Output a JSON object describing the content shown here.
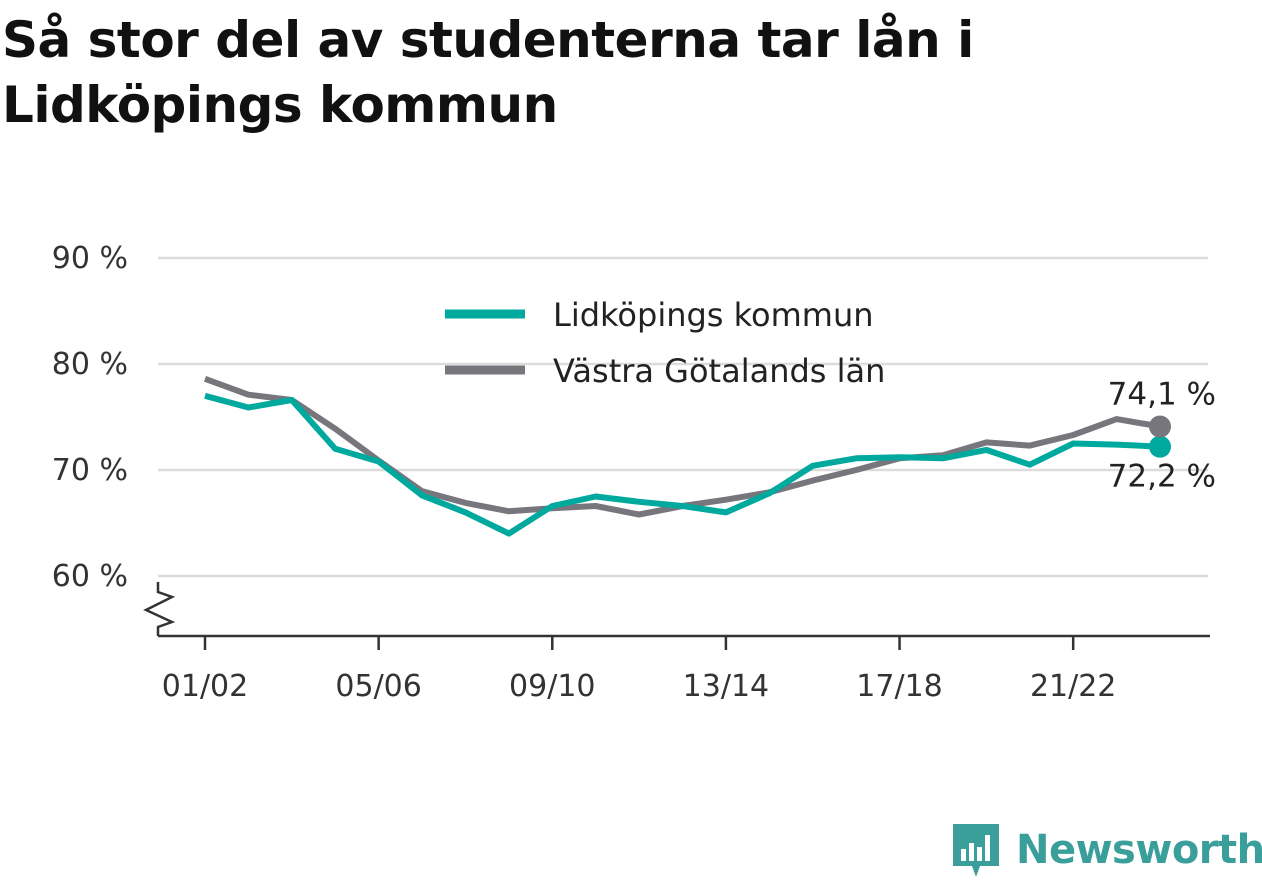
{
  "title": "Så stor del av studenterna tar lån i Lidköpings kommun",
  "brand": {
    "name": "Newsworthy",
    "logo_icon": "newsworthy-chart-icon",
    "color": "#3a9e9a"
  },
  "chart_data": {
    "type": "line",
    "title": "Så stor del av studenterna tar lån i Lidköpings kommun",
    "xlabel": "",
    "ylabel": "",
    "ylim": [
      55,
      90
    ],
    "yticks": [
      60,
      70,
      80,
      90
    ],
    "ytick_labels": [
      "60 %",
      "70 %",
      "80 %",
      "90 %"
    ],
    "y_axis_break": true,
    "grid": true,
    "legend": "top-center",
    "x": [
      "01/02",
      "02/03",
      "03/04",
      "04/05",
      "05/06",
      "06/07",
      "07/08",
      "08/09",
      "09/10",
      "10/11",
      "11/12",
      "12/13",
      "13/14",
      "14/15",
      "15/16",
      "16/17",
      "17/18",
      "18/19",
      "19/20",
      "20/21",
      "21/22",
      "22/23",
      "23/24"
    ],
    "xtick_labels": [
      "01/02",
      "05/06",
      "09/10",
      "13/14",
      "17/18",
      "21/22"
    ],
    "series": [
      {
        "name": "Lidköpings kommun",
        "color": "#00a99d",
        "values": [
          77.0,
          75.9,
          76.6,
          72.0,
          70.8,
          67.6,
          66.0,
          64.0,
          66.6,
          67.5,
          67.0,
          66.6,
          66.0,
          67.8,
          70.4,
          71.1,
          71.2,
          71.1,
          71.9,
          70.5,
          72.5,
          72.4,
          72.2
        ],
        "end_label": "72,2 %"
      },
      {
        "name": "Västra Götalands län",
        "color": "#77767c",
        "values": [
          78.6,
          77.1,
          76.6,
          73.9,
          70.9,
          68.0,
          66.9,
          66.1,
          66.4,
          66.6,
          65.8,
          66.6,
          67.2,
          67.9,
          69.0,
          70.0,
          71.1,
          71.4,
          72.6,
          72.3,
          73.3,
          74.8,
          74.1
        ],
        "end_label": "74,1 %"
      }
    ]
  }
}
